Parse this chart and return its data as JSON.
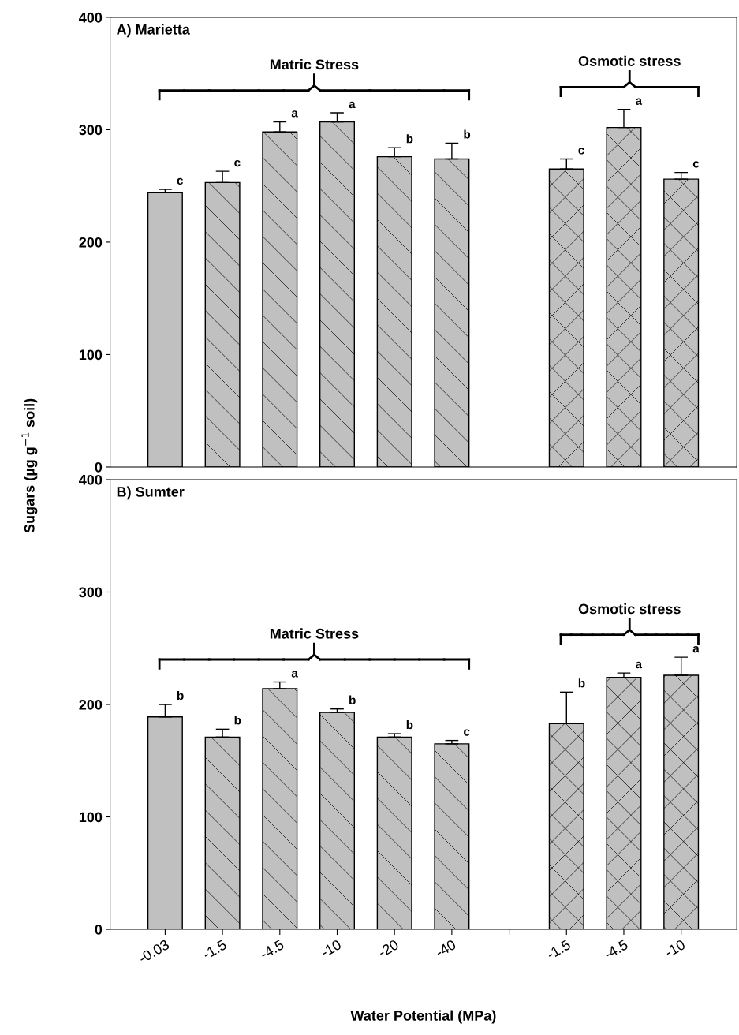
{
  "chart_data": [
    {
      "type": "bar",
      "title": "A) Marietta",
      "ylabel": "Sugars (µg g$^{−1}$ soil)",
      "categories": [
        "-0.03",
        "-1.5",
        "-4.5",
        "-10",
        "-20",
        "-40",
        null,
        "-1.5",
        "-4.5",
        "-10"
      ],
      "values": [
        244,
        253,
        298,
        307,
        276,
        274,
        null,
        265,
        302,
        256
      ],
      "errors": [
        3,
        10,
        9,
        8,
        8,
        14,
        null,
        9,
        16,
        6
      ],
      "value_labels": [
        "c",
        "c",
        "a",
        "a",
        "b",
        "b",
        null,
        "c",
        "a",
        "c"
      ],
      "color": "#c0c0c0",
      "annotations": [
        "Matric Stress",
        "Osmotic stress"
      ],
      "ylim": [
        0,
        400
      ],
      "yticks": [
        0,
        100,
        200,
        300,
        400
      ],
      "tick_labels": "y",
      "grid": false,
      "legend": false
    },
    {
      "type": "bar",
      "title": "B) Sumter",
      "xlabel": "Water Potential (MPa)",
      "categories": [
        "-0.03",
        "-1.5",
        "-4.5",
        "-10",
        "-20",
        "-40",
        null,
        "-1.5",
        "-4.5",
        "-10"
      ],
      "values": [
        189,
        171,
        214,
        193,
        171,
        165,
        null,
        183,
        224,
        226
      ],
      "errors": [
        11,
        7,
        6,
        3,
        3,
        3,
        null,
        28,
        4,
        16
      ],
      "value_labels": [
        "b",
        "b",
        "a",
        "b",
        "b",
        "c",
        null,
        "b",
        "a",
        "a"
      ],
      "color": "#c0c0c0",
      "annotations": [
        "Matric Stress",
        "Osmotic stress"
      ],
      "ylim": [
        0,
        400
      ],
      "yticks": [
        0,
        100,
        200,
        300,
        400
      ],
      "grid": false,
      "legend": false
    }
  ]
}
